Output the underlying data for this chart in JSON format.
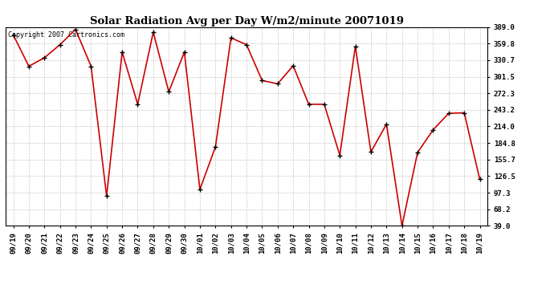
{
  "title": "Solar Radiation Avg per Day W/m2/minute 20071019",
  "copyright": "Copyright 2007 Cartronics.com",
  "x_labels": [
    "09/19",
    "09/20",
    "09/21",
    "09/22",
    "09/23",
    "09/24",
    "09/25",
    "09/26",
    "09/27",
    "09/28",
    "09/29",
    "09/30",
    "10/01",
    "10/02",
    "10/03",
    "10/04",
    "10/05",
    "10/06",
    "10/07",
    "10/08",
    "10/09",
    "10/10",
    "10/11",
    "10/12",
    "10/13",
    "10/14",
    "10/15",
    "10/16",
    "10/17",
    "10/18",
    "10/19"
  ],
  "y_values": [
    375.0,
    320.0,
    335.0,
    358.0,
    385.0,
    320.0,
    91.0,
    345.0,
    253.0,
    380.0,
    275.0,
    345.0,
    103.0,
    178.0,
    370.0,
    358.0,
    295.0,
    289.0,
    321.0,
    253.0,
    253.0,
    163.0,
    355.0,
    169.0,
    218.0,
    39.0,
    168.0,
    208.0,
    237.0,
    238.0,
    121.0
  ],
  "y_ticks": [
    39.0,
    68.2,
    97.3,
    126.5,
    155.7,
    184.8,
    214.0,
    243.2,
    272.3,
    301.5,
    330.7,
    359.8,
    389.0
  ],
  "y_min": 39.0,
  "y_max": 389.0,
  "line_color": "#cc0000",
  "marker_color": "#000000",
  "bg_color": "#ffffff",
  "grid_color": "#bbbbbb",
  "title_fontsize": 9.5,
  "copyright_fontsize": 6.0,
  "tick_fontsize": 6.5,
  "ytick_fontsize": 6.5
}
